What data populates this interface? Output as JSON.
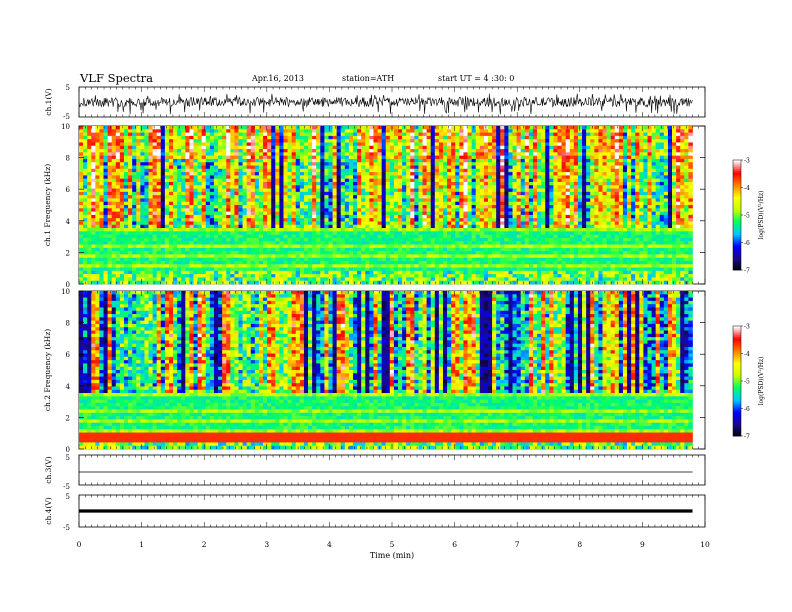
{
  "header": {
    "title": "VLF Spectra",
    "date": "Apr.16, 2013",
    "station": "station=ATH",
    "start": "start UT = 4 :30: 0"
  },
  "chart_data": [
    {
      "type": "line",
      "panel": "ch1-waveform",
      "ylabel": "ch.1(V)",
      "ylim": [
        -5,
        5
      ],
      "yticks": [
        "5",
        "-5"
      ],
      "x_range_min": [
        0,
        9.8
      ],
      "note_visible": "noisy waveform, amplitude mostly between -2.5 and 2.5 V with spikes near -4 V"
    },
    {
      "type": "heatmap",
      "panel": "ch1-spectrogram",
      "ylabel": "ch.1 Frequency (kHz)",
      "ylim": [
        0,
        10
      ],
      "yticks": [
        "0",
        "2",
        "4",
        "6",
        "8",
        "10"
      ],
      "colorbar": {
        "label": "log(PSD)(V²/Hz)",
        "ticks": [
          "-3",
          "-4",
          "-5",
          "-6",
          "-7"
        ],
        "range": [
          -7,
          -3
        ]
      }
    },
    {
      "type": "heatmap",
      "panel": "ch2-spectrogram",
      "ylabel": "ch.2 Frequency (kHz)",
      "ylim": [
        0,
        10
      ],
      "yticks": [
        "0",
        "2",
        "4",
        "6",
        "8",
        "10"
      ],
      "colorbar": {
        "label": "log(PSD)(V²/Hz)",
        "ticks": [
          "-3",
          "-4",
          "-5",
          "-6",
          "-7"
        ],
        "range": [
          -7,
          -3
        ]
      }
    },
    {
      "type": "line",
      "panel": "ch3-waveform",
      "ylabel": "ch.3(V)",
      "ylim": [
        -5,
        5
      ],
      "yticks": [
        "5",
        "-5"
      ],
      "level": 0
    },
    {
      "type": "line",
      "panel": "ch4-waveform",
      "ylabel": "ch.4(V)",
      "ylim": [
        -5,
        5
      ],
      "yticks": [
        "5",
        "-5"
      ],
      "level": 0
    }
  ],
  "xaxis": {
    "label": "Time (min)",
    "range": [
      0,
      10
    ],
    "ticks": [
      "0",
      "1",
      "2",
      "3",
      "4",
      "5",
      "6",
      "7",
      "8",
      "9",
      "10"
    ],
    "data_end": 9.8
  },
  "colors": {
    "colormap": [
      "#000000",
      "#1b0a8a",
      "#0000ff",
      "#00c8ff",
      "#00ff64",
      "#c8ff00",
      "#ffff00",
      "#ff8000",
      "#ff0000",
      "#ffffff"
    ]
  }
}
